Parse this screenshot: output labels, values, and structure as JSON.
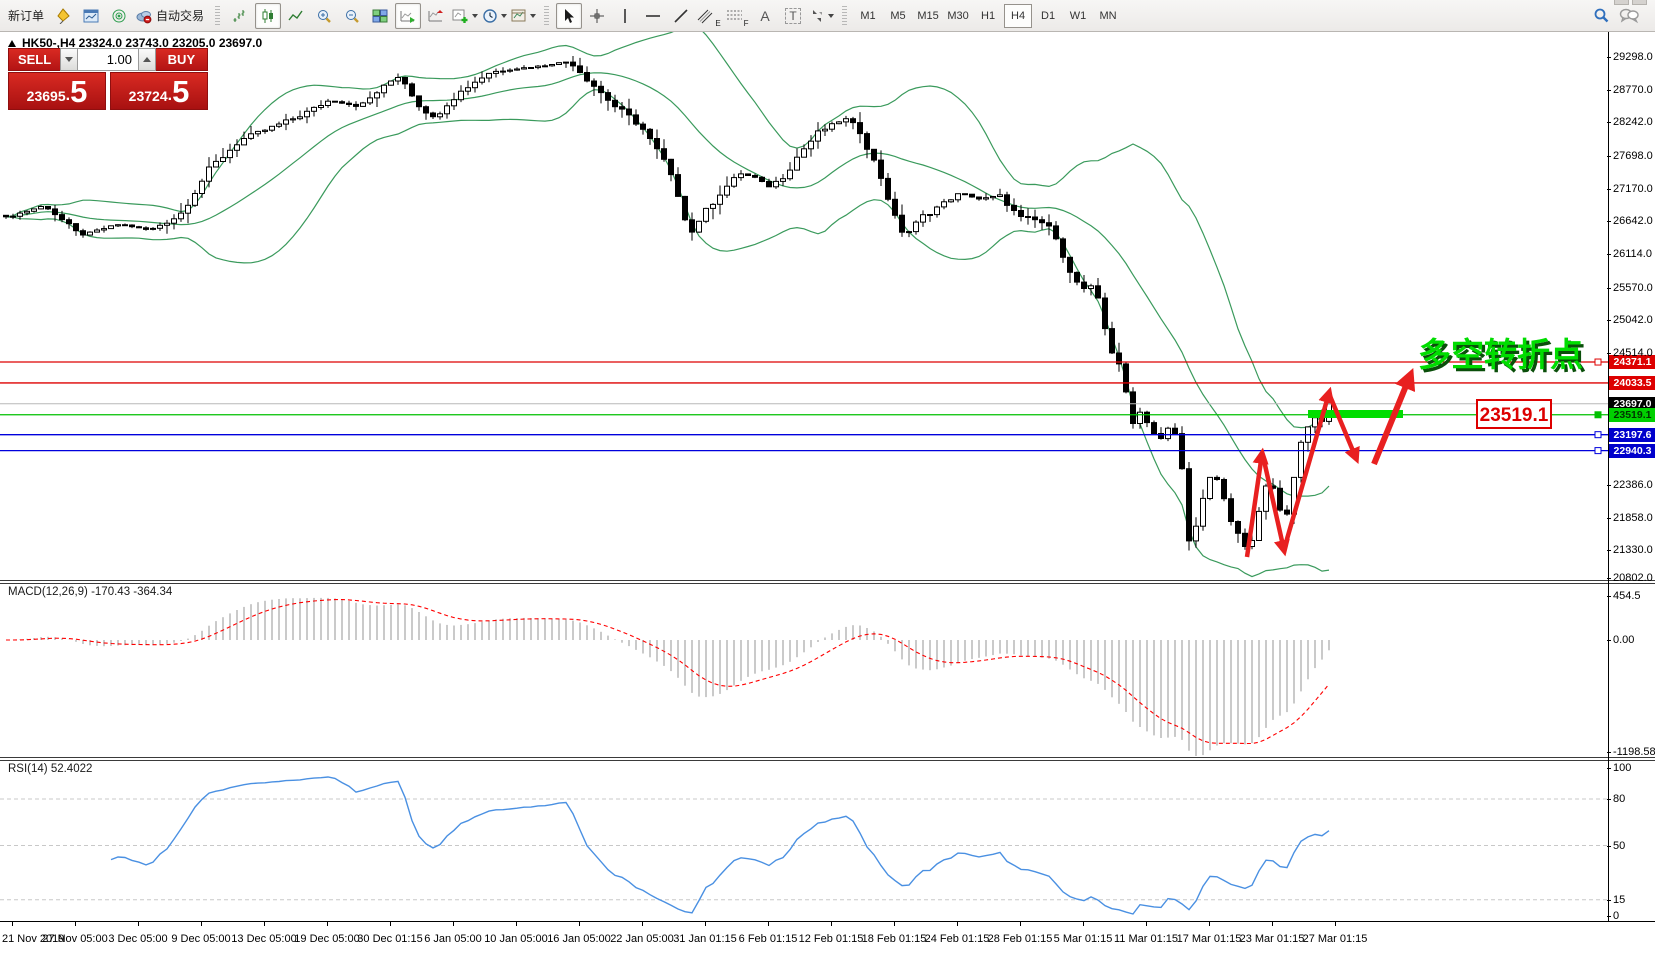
{
  "toolbar": {
    "new_order_label": "新订单",
    "autotrade_label": "自动交易",
    "text_tool_label": "A",
    "label_tool_label": "T",
    "channel_sub": "E",
    "fibo_sub": "F",
    "timeframes": [
      "M1",
      "M5",
      "M15",
      "M30",
      "H1",
      "H4",
      "D1",
      "W1",
      "MN"
    ],
    "active_timeframe": "H4"
  },
  "quote_panel": {
    "sell_label": "SELL",
    "buy_label": "BUY",
    "volume": "1.00",
    "sell_price_main": "23695",
    "sell_price_frac": "5",
    "buy_price_main": "23724",
    "buy_price_frac": "5",
    "decimal": "."
  },
  "chart": {
    "title": "HK50-,H4  23324.0 23743.0 23205.0 23697.0",
    "price_ticks": [
      "29298.0",
      "28770.0",
      "28242.0",
      "27698.0",
      "27170.0",
      "26642.0",
      "26114.0",
      "25570.0",
      "25042.0",
      "24514.0",
      "22386.0",
      "21858.0",
      "21330.0",
      "20802.0"
    ],
    "hlines": [
      {
        "price": 24371.1,
        "label": "24371.1",
        "color": "#dd0000",
        "label_bg": "#dd0000",
        "label_fg": "#ffffff",
        "marker": true
      },
      {
        "price": 24033.5,
        "label": "24033.5",
        "color": "#dd0000",
        "label_bg": "#dd0000",
        "label_fg": "#ffffff",
        "marker": false
      },
      {
        "price": 23697.0,
        "label": "23697.0",
        "color": "#b8b8b8",
        "label_bg": "#000000",
        "label_fg": "#ffffff",
        "marker": false
      },
      {
        "price": 23519.1,
        "label": "23519.1",
        "color": "#00c000",
        "label_bg": "#00d000",
        "label_fg": "#003300",
        "marker": true
      },
      {
        "price": 23197.6,
        "label": "23197.6",
        "color": "#0000dd",
        "label_bg": "#0000cc",
        "label_fg": "#ffffff",
        "marker": true
      },
      {
        "price": 22940.3,
        "label": "22940.3",
        "color": "#0000dd",
        "label_bg": "#0000cc",
        "label_fg": "#ffffff",
        "marker": true
      }
    ],
    "time_labels": [
      "21 Nov 2019",
      "27 Nov 05:00",
      "3 Dec 05:00",
      "9 Dec 05:00",
      "13 Dec 05:00",
      "19 Dec 05:00",
      "30 Dec 01:15",
      "6 Jan 05:00",
      "10 Jan 05:00",
      "16 Jan 05:00",
      "22 Jan 05:00",
      "31 Jan 01:15",
      "6 Feb 01:15",
      "12 Feb 01:15",
      "18 Feb 01:15",
      "24 Feb 01:15",
      "28 Feb 01:15",
      "5 Mar 01:15",
      "11 Mar 01:15",
      "17 Mar 01:15",
      "23 Mar 01:15",
      "27 Mar 01:15"
    ],
    "colors": {
      "candle_up": "#ffffff",
      "candle_down": "#000000",
      "candle_border": "#000000",
      "bollinger": "#3a9a5c",
      "macd_hist": "#bdbdbd",
      "macd_signal": "#ff0000",
      "rsi_line": "#4a90e2",
      "level_dash": "#c8c8c8",
      "annotation_red": "#e82020",
      "annotation_green": "#00dd00"
    }
  },
  "indicators": {
    "macd": {
      "label": "MACD(12,26,9) -170.43 -364.34",
      "axis_labels": [
        "454.5",
        "0.00",
        "-1198.58"
      ]
    },
    "rsi": {
      "label": "RSI(14) 52.4022",
      "axis_labels": [
        "100",
        "80",
        "50",
        "15",
        "0"
      ],
      "levels": [
        80,
        50,
        15
      ]
    }
  },
  "annotations": {
    "turning_point_text": "多空转折点",
    "price_callout": "23519.1"
  },
  "chart_data": {
    "type": "candlestick",
    "symbol": "HK50-",
    "period": "H4",
    "title": "HK50-,H4",
    "ohlc_display": {
      "open": 23324.0,
      "high": 23743.0,
      "low": 23205.0,
      "close": 23697.0
    },
    "bid": 23695.5,
    "ask": 23724.5,
    "y_range": [
      20802,
      29298
    ],
    "levels": {
      "resistance": [
        24371.1,
        24033.5
      ],
      "current_price": 23697.0,
      "pivot": 23519.1,
      "support": [
        23197.6,
        22940.3
      ]
    },
    "macd_current": [
      -170.43,
      -364.34
    ],
    "rsi_current": 52.4022,
    "price_path": [
      [
        0.0031,
        26700
      ],
      [
        0.028,
        26900
      ],
      [
        0.0498,
        26420
      ],
      [
        0.0746,
        26600
      ],
      [
        0.0933,
        26500
      ],
      [
        0.1119,
        26750
      ],
      [
        0.1306,
        27500
      ],
      [
        0.1493,
        27950
      ],
      [
        0.1679,
        28150
      ],
      [
        0.1866,
        28350
      ],
      [
        0.2052,
        28600
      ],
      [
        0.2239,
        28500
      ],
      [
        0.2425,
        28900
      ],
      [
        0.2488,
        29000
      ],
      [
        0.2612,
        28500
      ],
      [
        0.2705,
        28300
      ],
      [
        0.2799,
        28600
      ],
      [
        0.2923,
        28850
      ],
      [
        0.3047,
        29050
      ],
      [
        0.3172,
        29100
      ],
      [
        0.3358,
        29150
      ],
      [
        0.3545,
        29230
      ],
      [
        0.3669,
        28900
      ],
      [
        0.3825,
        28500
      ],
      [
        0.398,
        28200
      ],
      [
        0.4135,
        27600
      ],
      [
        0.4229,
        27000
      ],
      [
        0.4291,
        26420
      ],
      [
        0.4385,
        26800
      ],
      [
        0.4478,
        27100
      ],
      [
        0.4602,
        27420
      ],
      [
        0.4696,
        27350
      ],
      [
        0.4789,
        27200
      ],
      [
        0.4882,
        27400
      ],
      [
        0.4975,
        27750
      ],
      [
        0.51,
        28100
      ],
      [
        0.5255,
        28300
      ],
      [
        0.5348,
        28100
      ],
      [
        0.5473,
        27400
      ],
      [
        0.5566,
        26700
      ],
      [
        0.5628,
        26400
      ],
      [
        0.5721,
        26700
      ],
      [
        0.5846,
        26900
      ],
      [
        0.597,
        27100
      ],
      [
        0.6095,
        27000
      ],
      [
        0.6219,
        27050
      ],
      [
        0.6343,
        26700
      ],
      [
        0.6468,
        26650
      ],
      [
        0.6561,
        26450
      ],
      [
        0.6654,
        25800
      ],
      [
        0.6748,
        25500
      ],
      [
        0.681,
        25600
      ],
      [
        0.6903,
        24600
      ],
      [
        0.6978,
        24200
      ],
      [
        0.704,
        23400
      ],
      [
        0.7102,
        23600
      ],
      [
        0.7164,
        23250
      ],
      [
        0.7226,
        23100
      ],
      [
        0.7289,
        23400
      ],
      [
        0.7338,
        22900
      ],
      [
        0.7376,
        22100
      ],
      [
        0.74,
        21350
      ],
      [
        0.7438,
        21700
      ],
      [
        0.7488,
        22200
      ],
      [
        0.7537,
        22600
      ],
      [
        0.7587,
        22400
      ],
      [
        0.7637,
        21900
      ],
      [
        0.7687,
        21700
      ],
      [
        0.7736,
        21350
      ],
      [
        0.7786,
        21500
      ],
      [
        0.7836,
        22000
      ],
      [
        0.7886,
        22500
      ],
      [
        0.7935,
        22200
      ],
      [
        0.7985,
        21700
      ],
      [
        0.8035,
        22400
      ],
      [
        0.8085,
        23000
      ],
      [
        0.8134,
        23300
      ],
      [
        0.8172,
        23500
      ],
      [
        0.8209,
        23350
      ],
      [
        0.8253,
        23697
      ]
    ]
  }
}
